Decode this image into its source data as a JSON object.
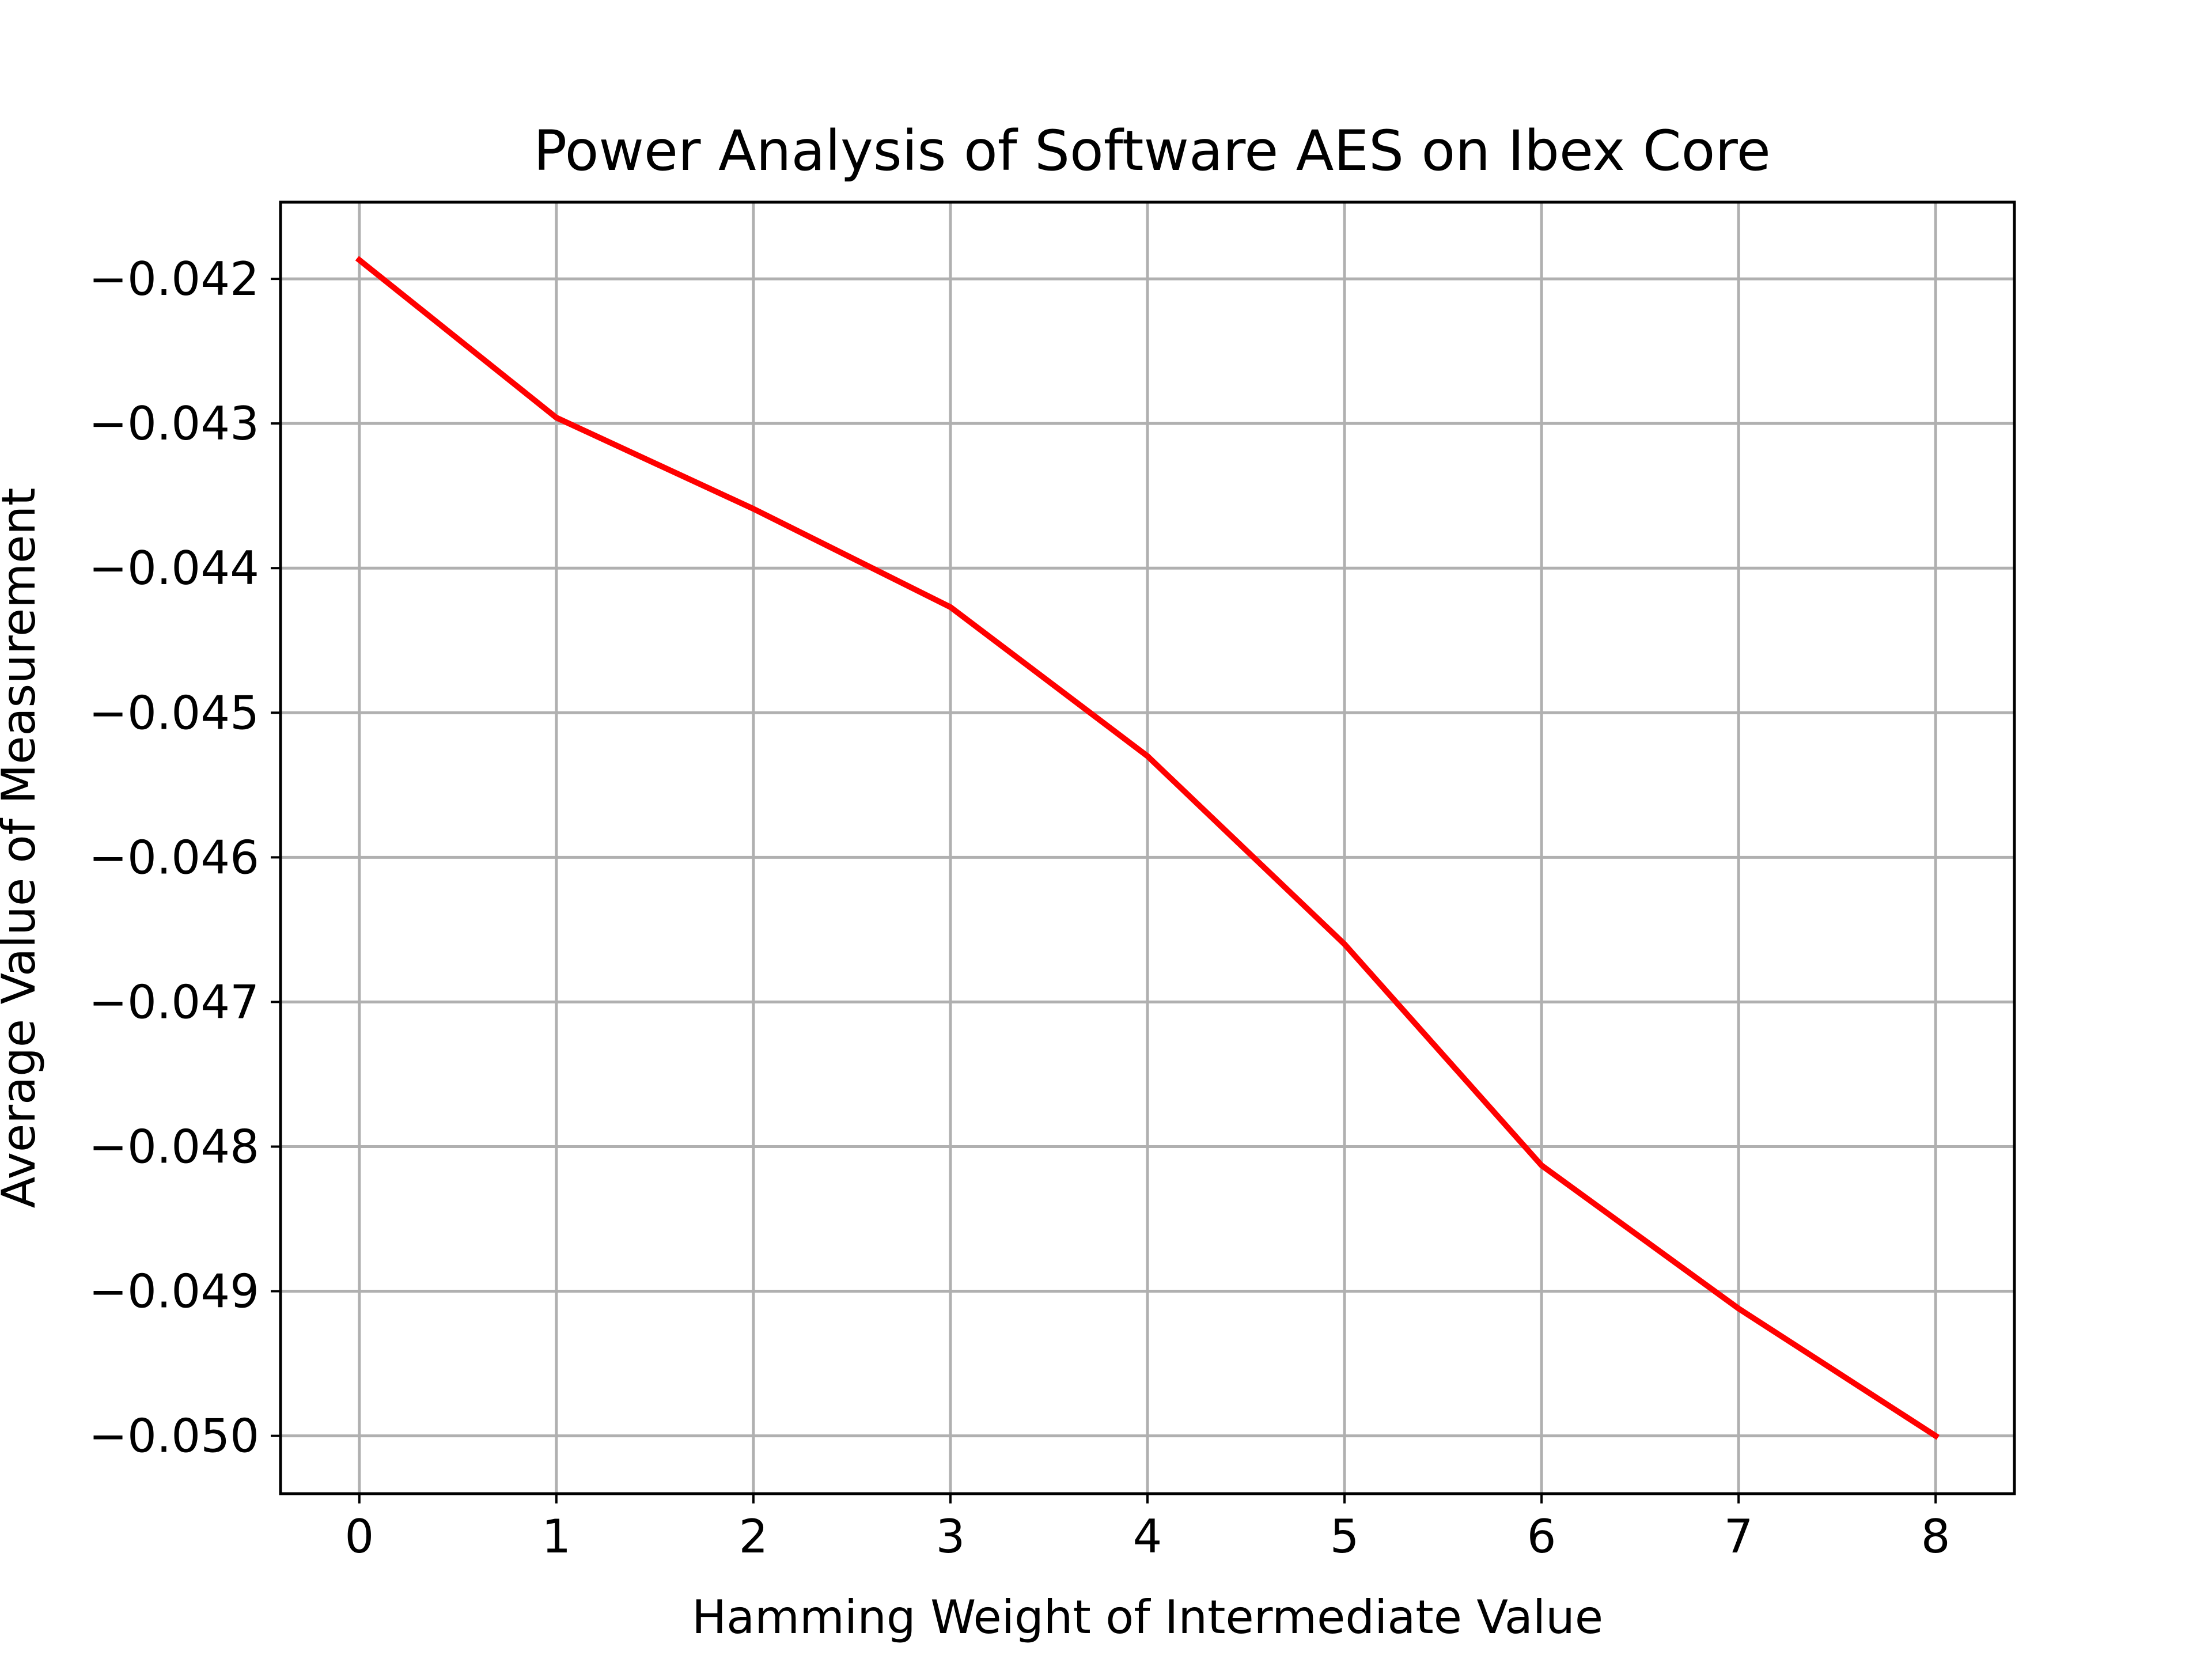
{
  "chart_data": {
    "type": "line",
    "title": "Power Analysis of Software AES on Ibex Core",
    "xlabel": "Hamming Weight of Intermediate Value",
    "ylabel": "Average Value of Measurement",
    "x": [
      0,
      1,
      2,
      3,
      4,
      5,
      6,
      7,
      8
    ],
    "series": [
      {
        "values": [
          -0.04187,
          -0.04296,
          -0.04359,
          -0.04427,
          -0.0453,
          -0.0466,
          -0.04813,
          -0.04912,
          -0.05
        ],
        "color": "#ff0000"
      }
    ],
    "xlim": [
      -0.4,
      8.4
    ],
    "ylim": [
      -0.0504,
      -0.04147
    ],
    "x_ticks": [
      0,
      1,
      2,
      3,
      4,
      5,
      6,
      7,
      8
    ],
    "x_tick_labels": [
      "0",
      "1",
      "2",
      "3",
      "4",
      "5",
      "6",
      "7",
      "8"
    ],
    "y_ticks": [
      -0.042,
      -0.043,
      -0.044,
      -0.045,
      -0.046,
      -0.047,
      -0.048,
      -0.049,
      -0.05
    ],
    "y_tick_labels": [
      "−0.042",
      "−0.043",
      "−0.044",
      "−0.045",
      "−0.046",
      "−0.047",
      "−0.048",
      "−0.049",
      "−0.050"
    ],
    "grid": true,
    "legend": "none"
  }
}
